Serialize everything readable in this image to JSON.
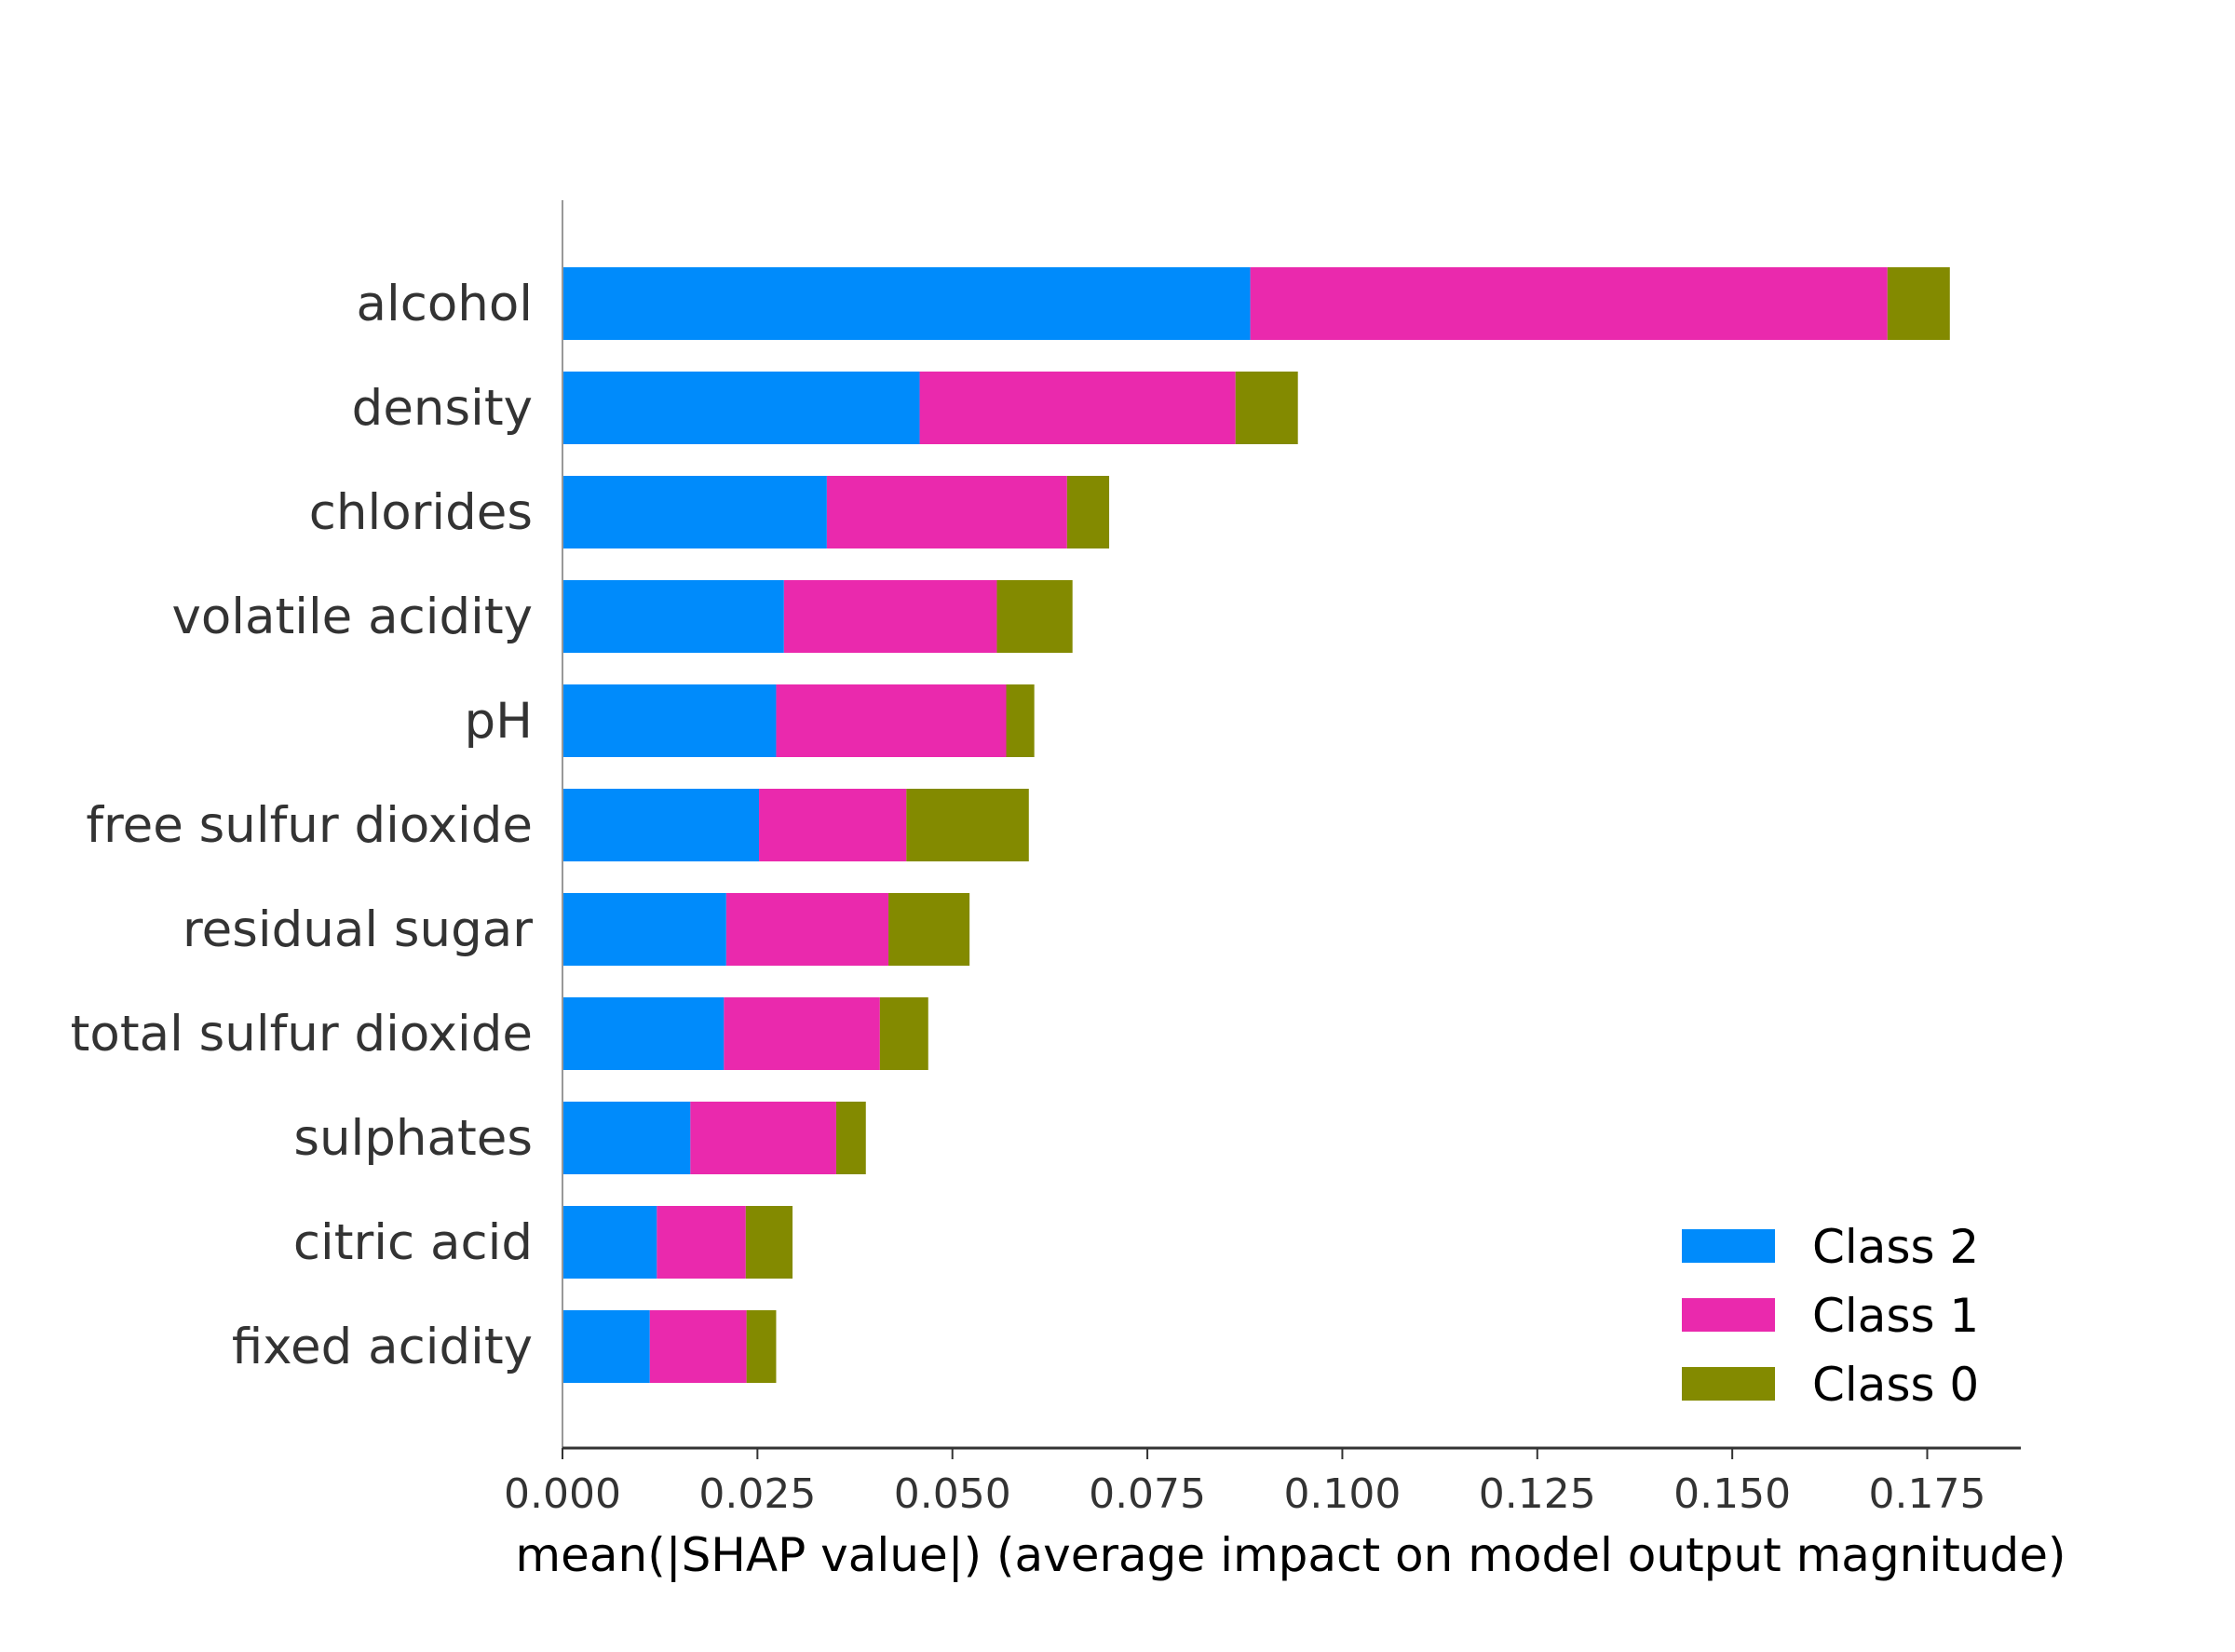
{
  "chart_data": {
    "type": "bar",
    "stacked": true,
    "orientation": "horizontal",
    "title": "",
    "xlabel": "mean(|SHAP value|) (average impact on model output magnitude)",
    "ylabel": "",
    "xlim": [
      0,
      0.187
    ],
    "xticks": [
      0.0,
      0.025,
      0.05,
      0.075,
      0.1,
      0.125,
      0.15,
      0.175
    ],
    "xtick_labels": [
      "0.000",
      "0.025",
      "0.050",
      "0.075",
      "0.100",
      "0.125",
      "0.150",
      "0.175"
    ],
    "grid": false,
    "legend_position": "lower-right",
    "categories": [
      "alcohol",
      "density",
      "chlorides",
      "volatile acidity",
      "pH",
      "free sulfur dioxide",
      "residual sugar",
      "total sulfur dioxide",
      "sulphates",
      "citric acid",
      "fixed acidity"
    ],
    "series": [
      {
        "name": "Class 2",
        "color": "#008bfb",
        "values": [
          0.0882,
          0.0458,
          0.0339,
          0.0284,
          0.0274,
          0.0252,
          0.021,
          0.0207,
          0.0164,
          0.0121,
          0.0112
        ]
      },
      {
        "name": "Class 1",
        "color": "#ea29ad",
        "values": [
          0.0817,
          0.0405,
          0.0308,
          0.0273,
          0.0295,
          0.0189,
          0.0208,
          0.02,
          0.0187,
          0.0114,
          0.0124
        ]
      },
      {
        "name": "Class 0",
        "color": "#838a00",
        "values": [
          0.008,
          0.008,
          0.0054,
          0.0097,
          0.0036,
          0.0157,
          0.0104,
          0.0062,
          0.0038,
          0.006,
          0.0038
        ]
      }
    ],
    "legend_order": [
      "Class 2",
      "Class 1",
      "Class 0"
    ]
  }
}
